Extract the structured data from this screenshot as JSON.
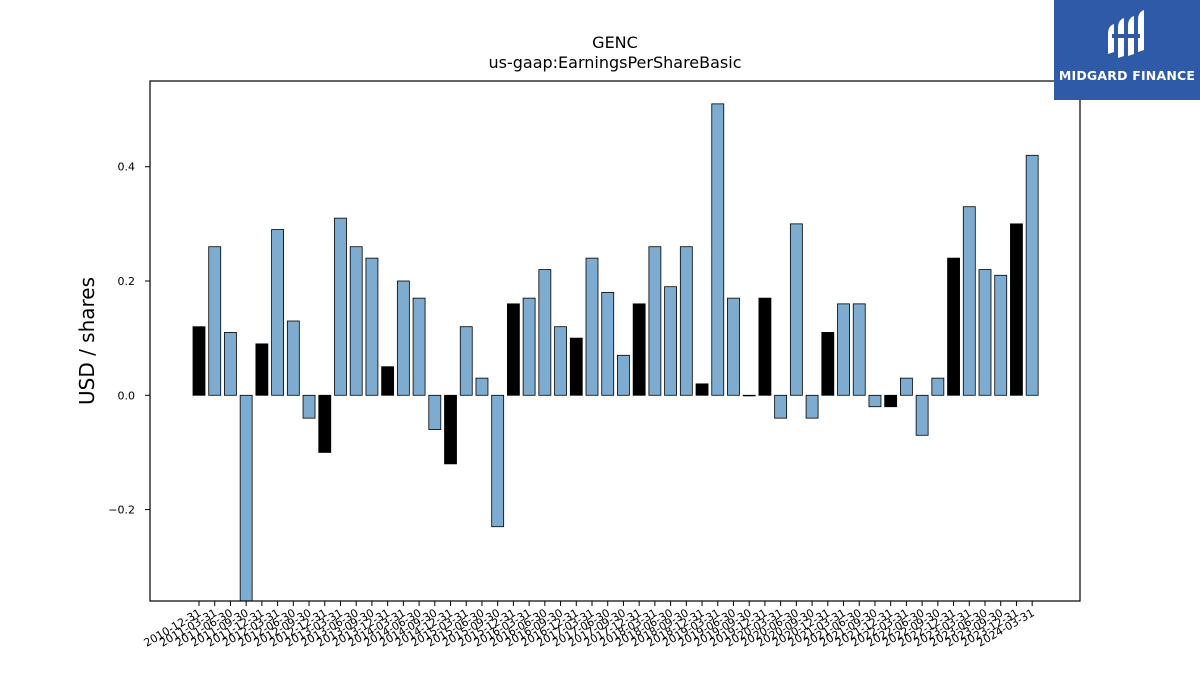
{
  "chart_data": {
    "type": "bar",
    "title": "GENC",
    "subtitle": "us-gaap:EarningsPerShareBasic",
    "xlabel": "",
    "ylabel": "USD  /  shares",
    "ylim": [
      -0.36,
      0.55
    ],
    "yticks": [
      -0.2,
      0.0,
      0.2,
      0.4
    ],
    "ytick_labels": [
      "−0.2",
      "0.0",
      "0.2",
      "0.4"
    ],
    "grid": false,
    "colors": {
      "quarter": "#7eabd0",
      "annual": "#000000",
      "edge": "#000000"
    },
    "categories": [
      "2010-12-31",
      "2011-03-31",
      "2011-06-30",
      "2011-09-30",
      "2011-12-31",
      "2012-03-31",
      "2012-06-30",
      "2012-09-30",
      "2012-12-31",
      "2013-03-31",
      "2013-06-30",
      "2013-09-30",
      "2013-12-31",
      "2014-03-31",
      "2014-06-30",
      "2014-09-30",
      "2014-12-31",
      "2015-03-31",
      "2015-06-30",
      "2015-09-30",
      "2015-12-31",
      "2016-03-31",
      "2016-06-30",
      "2016-09-30",
      "2016-12-31",
      "2017-03-31",
      "2017-06-30",
      "2017-09-30",
      "2017-12-31",
      "2018-03-31",
      "2018-06-30",
      "2018-09-30",
      "2018-12-31",
      "2019-03-31",
      "2019-06-30",
      "2019-09-30",
      "2019-12-31",
      "2020-03-31",
      "2020-06-30",
      "2020-09-30",
      "2020-12-31",
      "2021-03-31",
      "2021-06-30",
      "2021-09-30",
      "2021-12-31",
      "2022-03-31",
      "2022-06-30",
      "2022-09-30",
      "2022-12-31",
      "2023-03-31",
      "2023-06-30",
      "2023-09-30",
      "2023-12-31",
      "2024-03-31"
    ],
    "values": [
      0.12,
      0.26,
      0.11,
      -0.36,
      0.09,
      0.29,
      0.13,
      -0.04,
      -0.1,
      0.31,
      0.26,
      0.24,
      0.05,
      0.2,
      0.17,
      -0.06,
      -0.12,
      0.12,
      0.03,
      -0.23,
      0.16,
      0.17,
      0.22,
      0.12,
      0.1,
      0.24,
      0.18,
      0.07,
      0.16,
      0.26,
      0.19,
      0.26,
      0.02,
      0.51,
      0.17,
      0.0,
      0.17,
      -0.04,
      0.3,
      -0.04,
      0.11,
      0.16,
      0.16,
      -0.02,
      -0.02,
      0.03,
      -0.07,
      0.03,
      0.24,
      0.33,
      0.22,
      0.21,
      0.3,
      0.42
    ],
    "annual": [
      true,
      false,
      false,
      false,
      true,
      false,
      false,
      false,
      true,
      false,
      false,
      false,
      true,
      false,
      false,
      false,
      true,
      false,
      false,
      false,
      true,
      false,
      false,
      false,
      true,
      false,
      false,
      false,
      true,
      false,
      false,
      false,
      true,
      false,
      false,
      false,
      true,
      false,
      false,
      false,
      true,
      false,
      false,
      false,
      true,
      false,
      false,
      false,
      true,
      false,
      false,
      false,
      true,
      false
    ]
  },
  "logo": {
    "text": "MIDGARD FINANCE",
    "icon": "midgard-logo-icon"
  }
}
